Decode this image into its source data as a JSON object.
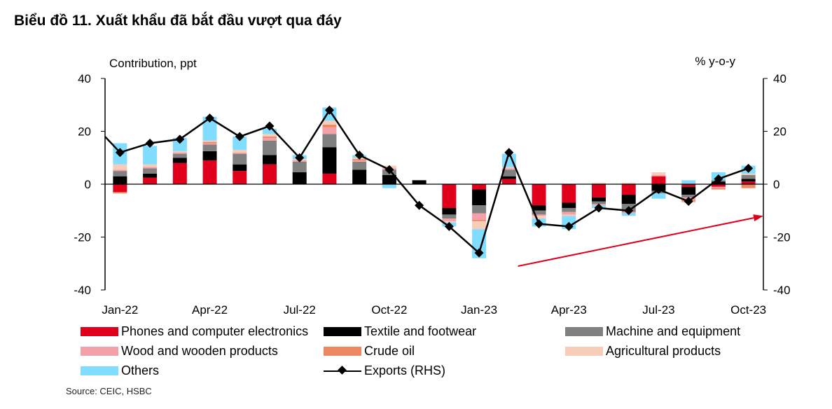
{
  "title": "Biểu đồ 11. Xuất khẩu đã bắt đầu vượt qua đáy",
  "source": "Source: CEIC, HSBC",
  "chart_data": {
    "type": "bar",
    "stacked": true,
    "left_axis_label": "Contribution,  ppt",
    "right_axis_label": "% y-o-y",
    "ylim": [
      -40,
      40
    ],
    "y2lim": [
      -40,
      40
    ],
    "yticks": [
      40,
      20,
      0,
      -20,
      -40
    ],
    "y2ticks": [
      40,
      20,
      0,
      -20,
      -40
    ],
    "x_tick_labels": [
      {
        "index": 0,
        "label": "Jan-22"
      },
      {
        "index": 3,
        "label": "Apr-22"
      },
      {
        "index": 6,
        "label": "Jul-22"
      },
      {
        "index": 9,
        "label": "Oct-22"
      },
      {
        "index": 12,
        "label": "Jan-23"
      },
      {
        "index": 15,
        "label": "Apr-23"
      },
      {
        "index": 18,
        "label": "Jul-23"
      },
      {
        "index": 21,
        "label": "Oct-23"
      }
    ],
    "categories": [
      "Jan-22",
      "Feb-22",
      "Mar-22",
      "Apr-22",
      "May-22",
      "Jun-22",
      "Jul-22",
      "Aug-22",
      "Sep-22",
      "Oct-22",
      "Nov-22",
      "Dec-22",
      "Jan-23",
      "Feb-23",
      "Mar-23",
      "Apr-23",
      "May-23",
      "Jun-23",
      "Jul-23",
      "Aug-23",
      "Sep-23",
      "Oct-23"
    ],
    "series": [
      {
        "name": "Phones and computer electronics",
        "color": "#E0001B",
        "values": [
          -3,
          2.5,
          8,
          9,
          5,
          7.5,
          0,
          4,
          0,
          0,
          0,
          -9,
          -2,
          2,
          -8,
          -7,
          -5,
          -4,
          3,
          -1,
          -1,
          1
        ]
      },
      {
        "name": "Textile and footwear",
        "color": "#000000",
        "values": [
          3,
          1.5,
          2,
          3.5,
          2.5,
          3.5,
          4.5,
          10,
          5.5,
          3.5,
          1.5,
          -2.5,
          -6,
          1,
          -2,
          -2,
          -1.5,
          -3.5,
          -2.5,
          -3,
          1,
          1
        ]
      },
      {
        "name": "Machine and equipment",
        "color": "#808080",
        "values": [
          2,
          2,
          1.5,
          2.5,
          4,
          5.5,
          4,
          5,
          3,
          2,
          0,
          -1.5,
          -3,
          2.5,
          -1.5,
          -1.5,
          -1,
          -3,
          -1,
          -1,
          0.5,
          1.5
        ]
      },
      {
        "name": "Wood and wooden products",
        "color": "#F4A0A8",
        "values": [
          0.5,
          0.5,
          0.5,
          0.5,
          0.5,
          1,
          0.5,
          2.5,
          0.5,
          0.5,
          0,
          -1,
          -2.5,
          0.5,
          -0.5,
          -1,
          -0.5,
          -0.5,
          0.5,
          -1,
          -0.5,
          0
        ]
      },
      {
        "name": "Crude oil",
        "color": "#EE8860",
        "values": [
          -0.5,
          0,
          0,
          0.5,
          0,
          0.5,
          0,
          1,
          0.5,
          0,
          0,
          0,
          -0.5,
          0,
          0,
          0,
          0,
          0,
          0,
          -0.5,
          -0.5,
          -1.5
        ]
      },
      {
        "name": "Agricultural products",
        "color": "#F8CDB8",
        "values": [
          2,
          1,
          0.5,
          0.5,
          1,
          1,
          0.5,
          1.5,
          0.5,
          1,
          0,
          -0.5,
          -3,
          0.5,
          -1,
          -0.5,
          0.5,
          0.5,
          1,
          -0.5,
          0,
          0.5
        ]
      },
      {
        "name": "Others",
        "color": "#80DDFF",
        "values": [
          8,
          7,
          5,
          9,
          5,
          2,
          1.5,
          5,
          1,
          -1.5,
          0,
          -1.5,
          -11,
          5,
          -3,
          -5,
          -1,
          -1,
          -2,
          1.5,
          3,
          3
        ]
      }
    ],
    "line": {
      "name": "Exports (RHS)",
      "color": "#000000",
      "start_y": 18,
      "values": [
        12,
        15.5,
        17,
        25,
        18,
        22,
        10,
        28,
        11,
        5.5,
        -8,
        -16,
        -26,
        12,
        -15,
        -16,
        -9,
        -10,
        -2,
        -6.5,
        2,
        6
      ]
    },
    "annotation": {
      "type": "arrow",
      "color": "#E0001B",
      "from": {
        "index": 13.3,
        "y": -31
      },
      "to": {
        "index": 21.5,
        "y": -12
      }
    },
    "legend_position": "bottom"
  }
}
